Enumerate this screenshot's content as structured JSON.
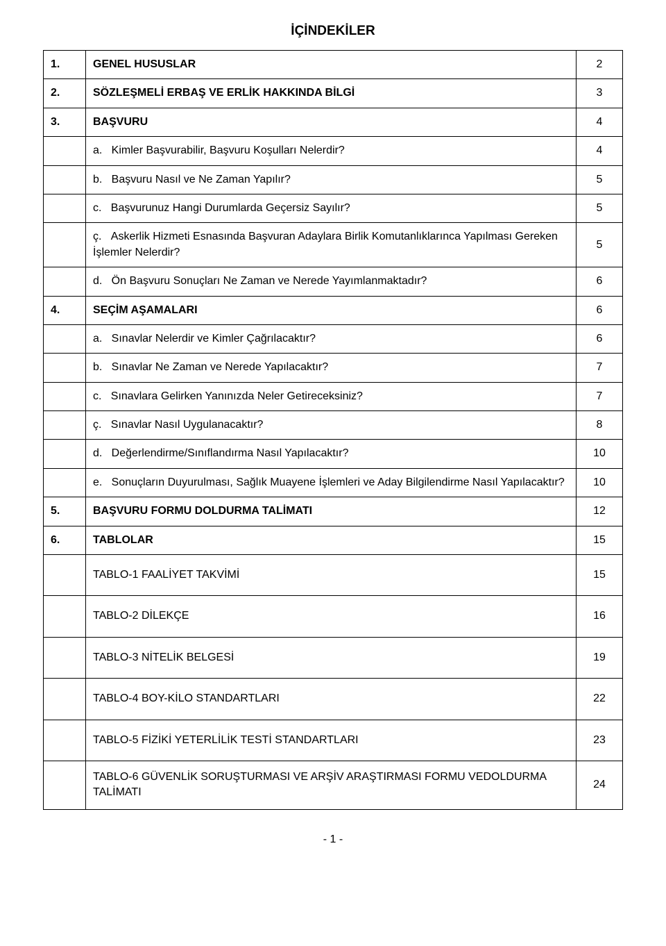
{
  "title": "İÇİNDEKİLER",
  "rows": [
    {
      "idx": "1.",
      "text": "GENEL HUSUSLAR",
      "page": "2",
      "bold": true
    },
    {
      "idx": "2.",
      "text": "SÖZLEŞMELİ ERBAŞ VE ERLİK HAKKINDA BİLGİ",
      "page": "3",
      "bold": true
    },
    {
      "idx": "3.",
      "text": "BAŞVURU",
      "page": "4",
      "bold": true
    },
    {
      "idx": "",
      "sub": "a.",
      "text": "Kimler Başvurabilir, Başvuru Koşulları Nelerdir?",
      "page": "4"
    },
    {
      "idx": "",
      "sub": "b.",
      "text": "Başvuru Nasıl ve Ne Zaman Yapılır?",
      "page": "5"
    },
    {
      "idx": "",
      "sub": "c.",
      "text": "Başvurunuz Hangi Durumlarda Geçersiz Sayılır?",
      "page": "5"
    },
    {
      "idx": "",
      "sub": "ç.",
      "text": "Askerlik Hizmeti Esnasında Başvuran Adaylara Birlik Komutanlıklarınca Yapılması Gereken İşlemler Nelerdir?",
      "page": "5"
    },
    {
      "idx": "",
      "sub": "d.",
      "text": "Ön Başvuru Sonuçları Ne Zaman ve Nerede Yayımlanmaktadır?",
      "page": "6"
    },
    {
      "idx": "4.",
      "text": "SEÇİM AŞAMALARI",
      "page": "6",
      "bold": true
    },
    {
      "idx": "",
      "sub": "a.",
      "text": "Sınavlar Nelerdir ve Kimler Çağrılacaktır?",
      "page": "6"
    },
    {
      "idx": "",
      "sub": "b.",
      "text": "Sınavlar Ne Zaman ve Nerede Yapılacaktır?",
      "page": "7"
    },
    {
      "idx": "",
      "sub": "c.",
      "text": "Sınavlara Gelirken Yanınızda Neler Getireceksiniz?",
      "page": "7"
    },
    {
      "idx": "",
      "sub": "ç.",
      "text": "Sınavlar Nasıl Uygulanacaktır?",
      "page": "8"
    },
    {
      "idx": "",
      "sub": "d.",
      "text": "Değerlendirme/Sınıflandırma Nasıl Yapılacaktır?",
      "page": "10"
    },
    {
      "idx": "",
      "sub": "e.",
      "text": "Sonuçların Duyurulması, Sağlık Muayene İşlemleri ve Aday Bilgilendirme Nasıl Yapılacaktır?",
      "page": "10"
    },
    {
      "idx": "5.",
      "text": "BAŞVURU FORMU DOLDURMA TALİMATI",
      "page": "12",
      "bold": true
    },
    {
      "idx": "6.",
      "text": "TABLOLAR",
      "page": "15",
      "bold": true
    },
    {
      "idx": "",
      "text": "TABLO-1 FAALİYET TAKVİMİ",
      "page": "15",
      "plain": true
    },
    {
      "idx": "",
      "text": "TABLO-2 DİLEKÇE",
      "page": "16",
      "plain": true
    },
    {
      "idx": "",
      "text": "TABLO-3 NİTELİK BELGESİ",
      "page": "19",
      "plain": true
    },
    {
      "idx": "",
      "text": "TABLO-4 BOY-KİLO STANDARTLARI",
      "page": "22",
      "plain": true
    },
    {
      "idx": "",
      "text": "TABLO-5 FİZİKİ YETERLİLİK TESTİ STANDARTLARI",
      "page": "23",
      "plain": true
    },
    {
      "idx": "",
      "line1": "TABLO-6  GÜVENLİK SORUŞTURMASI VE ARŞİV ARAŞTIRMASI FORMU VE",
      "line2": "DOLDURMA TALİMATI",
      "page": "24",
      "indent": true
    }
  ],
  "footer": "- 1 -"
}
